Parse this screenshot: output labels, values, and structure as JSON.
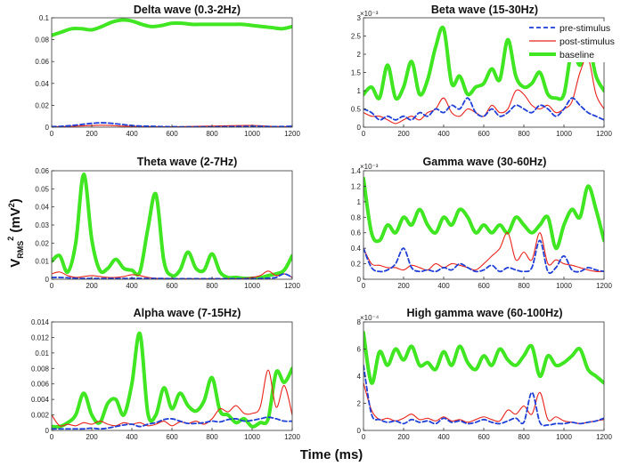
{
  "figure": {
    "xlabel": "Time (ms)",
    "ylabel_main": "V",
    "ylabel_sub": "RMS",
    "ylabel_sup": "2",
    "ylabel_unit_open": " (mV",
    "ylabel_unit_sup": "2",
    "ylabel_unit_close": ")"
  },
  "colors": {
    "pre": "#1f3fd6",
    "post": "#e8231b",
    "baseline": "#3fe621"
  },
  "legend": {
    "items": [
      {
        "label": "pre-stimulus",
        "key": "pre"
      },
      {
        "label": "post-stimulus",
        "key": "post"
      },
      {
        "label": "baseline",
        "key": "baseline"
      }
    ]
  },
  "chart_data": [
    {
      "type": "line",
      "title": "Delta wave (0.3-2Hz)",
      "xlim": [
        0,
        1200
      ],
      "ylim": [
        0,
        0.1
      ],
      "xticks": [
        0,
        200,
        400,
        600,
        800,
        1000,
        1200
      ],
      "yticks": [
        0,
        0.02,
        0.04,
        0.06,
        0.08,
        0.1
      ],
      "ytick_labels": [
        "0",
        "0.02",
        "0.04",
        "0.06",
        "0.08",
        "0.1"
      ],
      "exponent": "",
      "x": [
        0,
        50,
        100,
        150,
        200,
        250,
        300,
        350,
        400,
        450,
        500,
        550,
        600,
        650,
        700,
        750,
        800,
        850,
        900,
        950,
        1000,
        1050,
        1100,
        1150,
        1200
      ],
      "series": [
        {
          "name": "pre-stimulus",
          "key": "pre",
          "values": [
            0.0005,
            0.0008,
            0.0015,
            0.0025,
            0.0035,
            0.004,
            0.0035,
            0.0025,
            0.0015,
            0.001,
            0.0008,
            0.0005,
            0.0004,
            0.0003,
            0.0003,
            0.0003,
            0.0003,
            0.0004,
            0.0005,
            0.0006,
            0.0008,
            0.0007,
            0.0005,
            0.0006,
            0.0008
          ]
        },
        {
          "name": "post-stimulus",
          "key": "post",
          "values": [
            0.0003,
            0.0005,
            0.0008,
            0.0012,
            0.0015,
            0.0018,
            0.0015,
            0.001,
            0.0008,
            0.0006,
            0.0005,
            0.0004,
            0.0004,
            0.0005,
            0.0007,
            0.0009,
            0.001,
            0.0012,
            0.0014,
            0.0015,
            0.0016,
            0.0012,
            0.0008,
            0.0005,
            0.0003
          ]
        },
        {
          "name": "baseline",
          "key": "baseline",
          "values": [
            0.084,
            0.087,
            0.09,
            0.09,
            0.089,
            0.092,
            0.096,
            0.098,
            0.097,
            0.094,
            0.092,
            0.093,
            0.095,
            0.095,
            0.094,
            0.094,
            0.094,
            0.094,
            0.094,
            0.094,
            0.093,
            0.092,
            0.091,
            0.09,
            0.092
          ]
        }
      ]
    },
    {
      "type": "line",
      "title": "Beta wave (15-30Hz)",
      "xlim": [
        0,
        1200
      ],
      "ylim": [
        0,
        0.003
      ],
      "xticks": [
        0,
        200,
        400,
        600,
        800,
        1000,
        1200
      ],
      "yticks": [
        0,
        0.0005,
        0.001,
        0.0015,
        0.002,
        0.0025,
        0.003
      ],
      "ytick_labels": [
        "0",
        "0.5",
        "1",
        "1.5",
        "2",
        "2.5",
        "3"
      ],
      "exponent": "×10⁻³",
      "x": [
        0,
        40,
        80,
        120,
        160,
        200,
        240,
        280,
        320,
        360,
        400,
        440,
        480,
        520,
        560,
        600,
        640,
        680,
        720,
        760,
        800,
        840,
        880,
        920,
        960,
        1000,
        1040,
        1080,
        1120,
        1160,
        1200
      ],
      "series": [
        {
          "name": "pre-stimulus",
          "key": "pre",
          "values": [
            0.0005,
            0.0004,
            0.0002,
            0.0003,
            0.0002,
            0.0003,
            0.0002,
            0.0004,
            0.0003,
            0.0005,
            0.0004,
            0.0006,
            0.0005,
            0.0008,
            0.0004,
            0.0003,
            0.0005,
            0.0003,
            0.0004,
            0.0006,
            0.0005,
            0.0004,
            0.0006,
            0.0005,
            0.0003,
            0.0005,
            0.0008,
            0.0006,
            0.0004,
            0.0003,
            0.0002
          ]
        },
        {
          "name": "post-stimulus",
          "key": "post",
          "values": [
            0.0004,
            0.0003,
            0.0003,
            0.0002,
            0.0001,
            0.0002,
            0.0003,
            0.0002,
            0.0004,
            0.0005,
            0.0008,
            0.0004,
            0.0003,
            0.0005,
            0.0004,
            0.0003,
            0.0006,
            0.0004,
            0.0005,
            0.001,
            0.0009,
            0.0006,
            0.0005,
            0.0006,
            0.0004,
            0.0005,
            0.0007,
            0.0015,
            0.0019,
            0.0009,
            0.0005
          ]
        },
        {
          "name": "baseline",
          "key": "baseline",
          "values": [
            0.0009,
            0.0011,
            0.0008,
            0.0017,
            0.0008,
            0.0011,
            0.0018,
            0.0009,
            0.0013,
            0.0022,
            0.0027,
            0.0012,
            0.0014,
            0.0009,
            0.0011,
            0.0012,
            0.0016,
            0.0013,
            0.0024,
            0.0014,
            0.0011,
            0.0012,
            0.0015,
            0.0009,
            0.0008,
            0.0009,
            0.0021,
            0.0017,
            0.0023,
            0.0014,
            0.001
          ]
        }
      ]
    },
    {
      "type": "line",
      "title": "Theta wave (2-7Hz)",
      "xlim": [
        0,
        1200
      ],
      "ylim": [
        0,
        0.06
      ],
      "xticks": [
        0,
        200,
        400,
        600,
        800,
        1000,
        1200
      ],
      "yticks": [
        0,
        0.01,
        0.02,
        0.03,
        0.04,
        0.05,
        0.06
      ],
      "ytick_labels": [
        "0",
        "0.01",
        "0.02",
        "0.03",
        "0.04",
        "0.05",
        "0.06"
      ],
      "exponent": "",
      "x": [
        0,
        40,
        80,
        120,
        160,
        200,
        240,
        280,
        320,
        360,
        400,
        440,
        480,
        520,
        560,
        600,
        640,
        680,
        720,
        760,
        800,
        840,
        880,
        920,
        960,
        1000,
        1040,
        1080,
        1120,
        1160,
        1200
      ],
      "series": [
        {
          "name": "pre-stimulus",
          "key": "pre",
          "values": [
            0.001,
            0.001,
            0.0008,
            0.0005,
            0.0004,
            0.0004,
            0.0004,
            0.0004,
            0.0004,
            0.0004,
            0.0005,
            0.0005,
            0.0004,
            0.0004,
            0.0004,
            0.0003,
            0.0003,
            0.0003,
            0.0003,
            0.0003,
            0.0003,
            0.0003,
            0.0003,
            0.0003,
            0.0003,
            0.0003,
            0.0004,
            0.0006,
            0.001,
            0.003,
            0.001
          ]
        },
        {
          "name": "post-stimulus",
          "key": "post",
          "values": [
            0.003,
            0.004,
            0.002,
            0.001,
            0.0015,
            0.002,
            0.0015,
            0.001,
            0.001,
            0.0015,
            0.0025,
            0.002,
            0.001,
            0.0005,
            0.0004,
            0.0004,
            0.0003,
            0.0003,
            0.0003,
            0.0003,
            0.0003,
            0.0003,
            0.0003,
            0.0003,
            0.0005,
            0.001,
            0.002,
            0.0045,
            0.002,
            0.003,
            0.001
          ]
        },
        {
          "name": "baseline",
          "key": "baseline",
          "values": [
            0.01,
            0.013,
            0.004,
            0.02,
            0.058,
            0.022,
            0.005,
            0.006,
            0.011,
            0.006,
            0.005,
            0.004,
            0.028,
            0.047,
            0.01,
            0.002,
            0.005,
            0.015,
            0.006,
            0.005,
            0.014,
            0.004,
            0.001,
            0.001,
            0.0005,
            0.0005,
            0.0008,
            0.002,
            0.003,
            0.005,
            0.013
          ]
        }
      ]
    },
    {
      "type": "line",
      "title": "Gamma wave (30-60Hz)",
      "xlim": [
        0,
        1200
      ],
      "ylim": [
        0,
        0.0014
      ],
      "xticks": [
        0,
        200,
        400,
        600,
        800,
        1000,
        1200
      ],
      "yticks": [
        0,
        0.0002,
        0.0004,
        0.0006,
        0.0008,
        0.001,
        0.0012,
        0.0014
      ],
      "ytick_labels": [
        "0",
        "0.2",
        "0.4",
        "0.6",
        "0.8",
        "1",
        "1.2",
        "1.4"
      ],
      "exponent": "×10⁻³",
      "x": [
        0,
        40,
        80,
        120,
        160,
        200,
        240,
        280,
        320,
        360,
        400,
        440,
        480,
        520,
        560,
        600,
        640,
        680,
        720,
        760,
        800,
        840,
        880,
        920,
        960,
        1000,
        1040,
        1080,
        1120,
        1160,
        1200
      ],
      "series": [
        {
          "name": "pre-stimulus",
          "key": "pre",
          "values": [
            0.0004,
            0.00015,
            0.0001,
            0.00012,
            0.0002,
            0.0004,
            0.00015,
            0.0001,
            0.00012,
            0.0001,
            0.00015,
            0.00012,
            0.0002,
            0.00015,
            0.0001,
            0.00012,
            0.00018,
            0.0001,
            0.00015,
            0.00012,
            0.0001,
            0.00015,
            0.0005,
            0.0001,
            0.00015,
            0.0003,
            0.00012,
            0.0001,
            0.00015,
            0.00012,
            0.0001
          ]
        },
        {
          "name": "post-stimulus",
          "key": "post",
          "values": [
            0.0004,
            0.0002,
            0.00018,
            0.00015,
            0.00015,
            0.00012,
            0.00018,
            0.00015,
            0.00012,
            0.0002,
            0.00015,
            0.0002,
            0.00018,
            0.00015,
            0.00012,
            0.0002,
            0.0003,
            0.0004,
            0.0006,
            0.00025,
            0.00035,
            0.00025,
            0.0006,
            0.0002,
            0.00025,
            0.0002,
            0.00018,
            0.00015,
            0.00012,
            0.0001,
            0.0001
          ]
        },
        {
          "name": "baseline",
          "key": "baseline",
          "values": [
            0.0013,
            0.0006,
            0.0005,
            0.0007,
            0.0006,
            0.0008,
            0.0007,
            0.0009,
            0.0007,
            0.0006,
            0.0008,
            0.0007,
            0.0009,
            0.0008,
            0.0006,
            0.0007,
            0.0006,
            0.0007,
            0.0006,
            0.0008,
            0.0007,
            0.0006,
            0.0007,
            0.0008,
            0.0004,
            0.0007,
            0.0009,
            0.0008,
            0.0012,
            0.0009,
            0.0005
          ]
        }
      ]
    },
    {
      "type": "line",
      "title": "Alpha wave (7-15Hz)",
      "xlim": [
        0,
        1200
      ],
      "ylim": [
        0,
        0.014
      ],
      "xticks": [
        0,
        200,
        400,
        600,
        800,
        1000,
        1200
      ],
      "yticks": [
        0,
        0.002,
        0.004,
        0.006,
        0.008,
        0.01,
        0.012,
        0.014
      ],
      "ytick_labels": [
        "0",
        "0.002",
        "0.004",
        "0.006",
        "0.008",
        "0.01",
        "0.012",
        "0.014"
      ],
      "exponent": "",
      "x": [
        0,
        40,
        80,
        120,
        160,
        200,
        240,
        280,
        320,
        360,
        400,
        440,
        480,
        520,
        560,
        600,
        640,
        680,
        720,
        760,
        800,
        840,
        880,
        920,
        960,
        1000,
        1040,
        1080,
        1120,
        1160,
        1200
      ],
      "series": [
        {
          "name": "pre-stimulus",
          "key": "pre",
          "values": [
            0.0002,
            0.0002,
            0.0002,
            0.0002,
            0.0002,
            0.0003,
            0.0002,
            0.0003,
            0.0005,
            0.0007,
            0.0008,
            0.0005,
            0.0008,
            0.001,
            0.0014,
            0.0015,
            0.0012,
            0.0009,
            0.0009,
            0.001,
            0.0012,
            0.0011,
            0.0014,
            0.0015,
            0.0012,
            0.0013,
            0.0015,
            0.0017,
            0.0015,
            0.0012,
            0.0012
          ]
        },
        {
          "name": "post-stimulus",
          "key": "post",
          "values": [
            0.002,
            0.0006,
            0.0008,
            0.0006,
            0.001,
            0.0008,
            0.0012,
            0.0008,
            0.0006,
            0.001,
            0.0008,
            0.001,
            0.0006,
            0.0008,
            0.0012,
            0.0006,
            0.0011,
            0.0009,
            0.0012,
            0.0008,
            0.0015,
            0.0028,
            0.0024,
            0.0032,
            0.0022,
            0.0022,
            0.003,
            0.0078,
            0.003,
            0.0058,
            0.002
          ]
        },
        {
          "name": "baseline",
          "key": "baseline",
          "values": [
            0.0005,
            0.0005,
            0.001,
            0.002,
            0.0048,
            0.002,
            0.001,
            0.0035,
            0.004,
            0.002,
            0.006,
            0.0125,
            0.0022,
            0.002,
            0.0055,
            0.0028,
            0.0048,
            0.0032,
            0.0025,
            0.0038,
            0.0068,
            0.0025,
            0.002,
            0.001,
            0.0015,
            0.0005,
            0.001,
            0.0015,
            0.0075,
            0.0062,
            0.008
          ]
        }
      ]
    },
    {
      "type": "line",
      "title": "High gamma wave (60-100Hz)",
      "xlim": [
        0,
        1200
      ],
      "ylim": [
        0,
        0.0008
      ],
      "xticks": [
        0,
        200,
        400,
        600,
        800,
        1000,
        1200
      ],
      "yticks": [
        0,
        0.0002,
        0.0004,
        0.0006,
        0.0008
      ],
      "ytick_labels": [
        "0",
        "2",
        "4",
        "6",
        "8"
      ],
      "exponent": "×10⁻⁴",
      "x": [
        0,
        40,
        80,
        120,
        160,
        200,
        240,
        280,
        320,
        360,
        400,
        440,
        480,
        520,
        560,
        600,
        640,
        680,
        720,
        760,
        800,
        840,
        880,
        920,
        960,
        1000,
        1040,
        1080,
        1120,
        1160,
        1200
      ],
      "series": [
        {
          "name": "pre-stimulus",
          "key": "pre",
          "values": [
            0.00048,
            0.00012,
            8e-05,
            6e-05,
            7e-05,
            5e-05,
            8e-05,
            6e-05,
            7e-05,
            5e-05,
            9e-05,
            6e-05,
            7e-05,
            5e-05,
            6e-05,
            8e-05,
            6e-05,
            5e-05,
            7e-05,
            9e-05,
            6e-05,
            0.00028,
            6e-05,
            4e-05,
            5e-05,
            5e-05,
            6e-05,
            5e-05,
            6e-05,
            7e-05,
            9e-05
          ]
        },
        {
          "name": "post-stimulus",
          "key": "post",
          "values": [
            0.00035,
            0.00015,
            8e-05,
            9e-05,
            7e-05,
            9e-05,
            0.00012,
            8e-05,
            9e-05,
            7e-05,
            0.0001,
            7e-05,
            8e-05,
            6e-05,
            8e-05,
            0.0001,
            8e-05,
            7e-05,
            0.00015,
            0.00012,
            0.00018,
            0.00012,
            0.00028,
            8e-05,
            0.0001,
            7e-05,
            6e-05,
            5e-05,
            6e-05,
            7e-05,
            8e-05
          ]
        },
        {
          "name": "baseline",
          "key": "baseline",
          "values": [
            0.00072,
            0.00035,
            0.00058,
            0.00048,
            0.0006,
            0.00052,
            0.00062,
            0.00048,
            0.0005,
            0.00045,
            0.00058,
            0.00048,
            0.00062,
            0.0005,
            0.00045,
            0.00055,
            0.00048,
            0.0006,
            0.00052,
            0.00048,
            0.00055,
            0.00062,
            0.0004,
            0.00055,
            0.00048,
            0.0005,
            0.00055,
            0.0006,
            0.00045,
            0.0004,
            0.00035
          ]
        }
      ]
    }
  ]
}
